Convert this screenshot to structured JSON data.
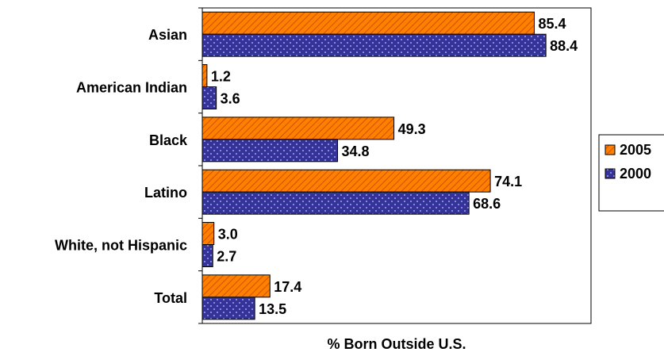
{
  "chart_data": {
    "type": "bar",
    "orientation": "horizontal",
    "categories": [
      "Asian",
      "American Indian",
      "Black",
      "Latino",
      "White, not Hispanic",
      "Total"
    ],
    "series": [
      {
        "name": "2005",
        "values": [
          85.4,
          1.2,
          49.3,
          74.1,
          3.0,
          17.4
        ],
        "color": "#ff7f00",
        "pattern": "diagonal-hatch"
      },
      {
        "name": "2000",
        "values": [
          88.4,
          3.6,
          34.8,
          68.6,
          2.7,
          13.5
        ],
        "color": "#3333aa",
        "pattern": "dots"
      }
    ],
    "value_labels": [
      [
        "85.4",
        "1.2",
        "49.3",
        "74.1",
        "3.0",
        "17.4"
      ],
      [
        "88.4",
        "3.6",
        "34.8",
        "68.6",
        "2.7",
        "13.5"
      ]
    ],
    "xlabel": "% Born Outside U.S.",
    "ylabel": "",
    "title": "",
    "xlim": [
      0,
      100
    ],
    "grid": false,
    "legend_position": "right"
  }
}
